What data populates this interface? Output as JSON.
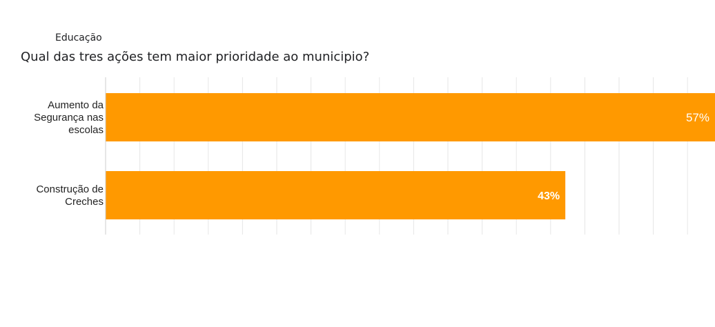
{
  "section": {
    "label": "Educação"
  },
  "question": {
    "text": "Qual das tres ações tem maior prioridade ao municipio?"
  },
  "chart_data": {
    "type": "bar",
    "orientation": "horizontal",
    "categories": [
      [
        "Aumento da",
        "Segurança nas",
        "escolas"
      ],
      [
        "Construção de",
        "Creches"
      ]
    ],
    "values": [
      57,
      43
    ],
    "value_labels": [
      "57%",
      "43%"
    ],
    "xlim": [
      0,
      57
    ],
    "grid": true,
    "bar_color": "#ff9900",
    "label_color": "#ffffff",
    "grid_color": "#e6e6e6",
    "axis_color": "#cccccc"
  }
}
